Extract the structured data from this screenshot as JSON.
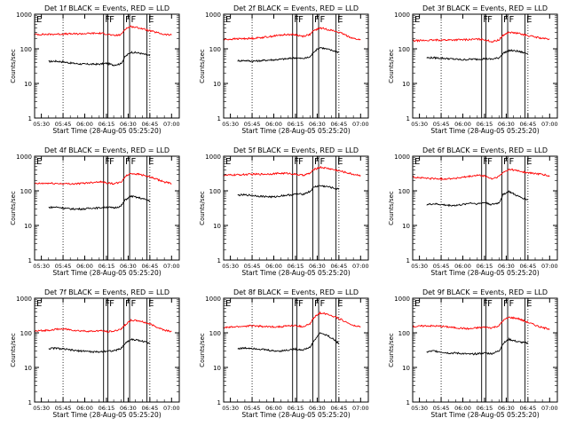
{
  "chart_data": {
    "type": "line",
    "layout": "3x3 grid of panels",
    "common": {
      "ylabel": "Counts/sec",
      "xlabel": "Start Time (28-Aug-05 05:25:20)",
      "y_scale": "log",
      "ylim": [
        1,
        1000
      ],
      "y_ticks": [
        1,
        10,
        100,
        1000
      ],
      "xlim_minutes_after_0525": [
        0,
        100
      ],
      "x_tick_labels": [
        "05:30",
        "05:45",
        "06:00",
        "06:15",
        "06:30",
        "06:45",
        "07:00"
      ],
      "grid": "vertical dotted lines at 05:45 and 06:45",
      "series_colors": {
        "events": "#000000",
        "lld": "#ff0000"
      },
      "markers": [
        {
          "label": "E",
          "time": "05:25:20"
        },
        {
          "label": "F",
          "time": "06:13"
        },
        {
          "label": "F",
          "time": "06:16"
        },
        {
          "label": "F",
          "time": "06:27"
        },
        {
          "label": "F",
          "time": "06:31"
        },
        {
          "label": "E",
          "time": "06:43"
        }
      ]
    },
    "panels": [
      {
        "title": "Det 1f BLACK = Events, RED = LLD",
        "series": [
          {
            "x": [
              "05:35",
              "05:40",
              "05:45",
              "05:50",
              "05:55",
              "06:00",
              "06:05",
              "06:10",
              "06:15",
              "06:20",
              "06:25",
              "06:28",
              "06:32",
              "06:38",
              "06:45"
            ],
            "values": [
              43,
              44,
              42,
              39,
              37,
              36,
              36,
              36,
              38,
              34,
              37,
              60,
              80,
              75,
              63
            ]
          },
          {
            "x": [
              "05:25",
              "05:35",
              "05:45",
              "05:55",
              "06:05",
              "06:10",
              "06:15",
              "06:20",
              "06:25",
              "06:28",
              "06:32",
              "06:38",
              "06:45",
              "06:55",
              "07:00"
            ],
            "values": [
              260,
              262,
              268,
              270,
              280,
              282,
              270,
              240,
              255,
              380,
              440,
              400,
              330,
              260,
              250
            ]
          }
        ]
      },
      {
        "title": "Det 2f BLACK = Events, RED = LLD",
        "series": [
          {
            "x": [
              "05:35",
              "05:40",
              "05:45",
              "05:50",
              "05:55",
              "06:00",
              "06:05",
              "06:10",
              "06:15",
              "06:20",
              "06:25",
              "06:28",
              "06:32",
              "06:38",
              "06:45"
            ],
            "values": [
              45,
              46,
              44,
              45,
              47,
              48,
              50,
              52,
              55,
              52,
              58,
              85,
              110,
              95,
              80
            ]
          },
          {
            "x": [
              "05:25",
              "05:35",
              "05:45",
              "05:55",
              "06:05",
              "06:10",
              "06:15",
              "06:20",
              "06:25",
              "06:28",
              "06:32",
              "06:38",
              "06:45",
              "06:55",
              "07:00"
            ],
            "values": [
              185,
              195,
              200,
              220,
              250,
              260,
              255,
              230,
              260,
              340,
              400,
              360,
              300,
              200,
              180
            ]
          }
        ]
      },
      {
        "title": "Det 3f BLACK = Events, RED = LLD",
        "series": [
          {
            "x": [
              "05:35",
              "05:40",
              "05:45",
              "05:50",
              "05:55",
              "06:00",
              "06:05",
              "06:10",
              "06:15",
              "06:20",
              "06:25",
              "06:28",
              "06:32",
              "06:38",
              "06:45"
            ],
            "values": [
              55,
              55,
              54,
              52,
              50,
              48,
              50,
              50,
              52,
              50,
              55,
              75,
              90,
              85,
              72
            ]
          },
          {
            "x": [
              "05:25",
              "05:35",
              "05:45",
              "05:55",
              "06:05",
              "06:10",
              "06:15",
              "06:20",
              "06:25",
              "06:28",
              "06:32",
              "06:38",
              "06:45",
              "06:55",
              "07:00"
            ],
            "values": [
              170,
              175,
              180,
              182,
              185,
              190,
              185,
              160,
              180,
              250,
              300,
              280,
              240,
              200,
              190
            ]
          }
        ]
      },
      {
        "title": "Det 4f BLACK = Events, RED = LLD",
        "series": [
          {
            "x": [
              "05:35",
              "05:40",
              "05:45",
              "05:50",
              "05:55",
              "06:00",
              "06:05",
              "06:10",
              "06:15",
              "06:20",
              "06:25",
              "06:28",
              "06:32",
              "06:38",
              "06:45"
            ],
            "values": [
              33,
              34,
              32,
              30,
              30,
              30,
              32,
              32,
              34,
              32,
              36,
              55,
              70,
              62,
              52
            ]
          },
          {
            "x": [
              "05:25",
              "05:35",
              "05:45",
              "05:55",
              "06:05",
              "06:10",
              "06:15",
              "06:20",
              "06:25",
              "06:28",
              "06:32",
              "06:38",
              "06:45",
              "06:55",
              "07:00"
            ],
            "values": [
              160,
              165,
              160,
              160,
              175,
              185,
              170,
              160,
              175,
              260,
              320,
              300,
              250,
              180,
              160
            ]
          }
        ]
      },
      {
        "title": "Det 5f BLACK = Events, RED = LLD",
        "series": [
          {
            "x": [
              "05:35",
              "05:40",
              "05:45",
              "05:50",
              "05:55",
              "06:00",
              "06:05",
              "06:10",
              "06:15",
              "06:20",
              "06:25",
              "06:28",
              "06:32",
              "06:38",
              "06:45"
            ],
            "values": [
              75,
              76,
              74,
              70,
              68,
              66,
              72,
              75,
              80,
              80,
              95,
              130,
              140,
              130,
              110
            ]
          },
          {
            "x": [
              "05:25",
              "05:35",
              "05:45",
              "05:55",
              "06:05",
              "06:10",
              "06:15",
              "06:20",
              "06:25",
              "06:28",
              "06:32",
              "06:38",
              "06:45",
              "06:55",
              "07:00"
            ],
            "values": [
              280,
              290,
              300,
              305,
              320,
              320,
              300,
              280,
              320,
              420,
              480,
              440,
              380,
              300,
              280
            ]
          }
        ]
      },
      {
        "title": "Det 6f BLACK = Events, RED = LLD",
        "series": [
          {
            "x": [
              "05:35",
              "05:40",
              "05:45",
              "05:50",
              "05:55",
              "06:00",
              "06:05",
              "06:10",
              "06:15",
              "06:20",
              "06:25",
              "06:28",
              "06:32",
              "06:38",
              "06:45"
            ],
            "values": [
              40,
              42,
              40,
              38,
              38,
              40,
              45,
              42,
              46,
              40,
              45,
              80,
              95,
              70,
              55
            ]
          },
          {
            "x": [
              "05:25",
              "05:35",
              "05:45",
              "05:55",
              "06:05",
              "06:10",
              "06:15",
              "06:20",
              "06:25",
              "06:28",
              "06:32",
              "06:38",
              "06:45",
              "06:55",
              "07:00"
            ],
            "values": [
              250,
              230,
              220,
              230,
              260,
              280,
              270,
              220,
              260,
              340,
              420,
              380,
              330,
              300,
              260
            ]
          }
        ]
      },
      {
        "title": "Det 7f BLACK = Events, RED = LLD",
        "series": [
          {
            "x": [
              "05:35",
              "05:40",
              "05:45",
              "05:50",
              "05:55",
              "06:00",
              "06:05",
              "06:10",
              "06:15",
              "06:20",
              "06:25",
              "06:28",
              "06:32",
              "06:38",
              "06:45"
            ],
            "values": [
              35,
              36,
              34,
              32,
              30,
              30,
              28,
              28,
              30,
              30,
              35,
              50,
              65,
              60,
              50
            ]
          },
          {
            "x": [
              "05:25",
              "05:35",
              "05:45",
              "05:55",
              "06:05",
              "06:10",
              "06:15",
              "06:20",
              "06:25",
              "06:28",
              "06:32",
              "06:38",
              "06:45",
              "06:55",
              "07:00"
            ],
            "values": [
              110,
              120,
              130,
              115,
              110,
              115,
              110,
              110,
              130,
              170,
              230,
              220,
              180,
              120,
              110
            ]
          }
        ]
      },
      {
        "title": "Det 8f BLACK = Events, RED = LLD",
        "series": [
          {
            "x": [
              "05:35",
              "05:40",
              "05:45",
              "05:50",
              "05:55",
              "06:00",
              "06:05",
              "06:10",
              "06:15",
              "06:20",
              "06:25",
              "06:28",
              "06:32",
              "06:38",
              "06:45"
            ],
            "values": [
              35,
              36,
              36,
              34,
              32,
              30,
              30,
              32,
              34,
              32,
              38,
              60,
              100,
              80,
              50
            ]
          },
          {
            "x": [
              "05:25",
              "05:35",
              "05:45",
              "05:55",
              "06:05",
              "06:10",
              "06:15",
              "06:20",
              "06:25",
              "06:28",
              "06:32",
              "06:38",
              "06:45",
              "06:55",
              "07:00"
            ],
            "values": [
              140,
              150,
              160,
              150,
              150,
              160,
              160,
              150,
              180,
              280,
              380,
              340,
              260,
              160,
              150
            ]
          }
        ]
      },
      {
        "title": "Det 9f BLACK = Events, RED = LLD",
        "series": [
          {
            "x": [
              "05:35",
              "05:40",
              "05:45",
              "05:50",
              "05:55",
              "06:00",
              "06:05",
              "06:10",
              "06:15",
              "06:20",
              "06:25",
              "06:28",
              "06:32",
              "06:38",
              "06:45"
            ],
            "values": [
              28,
              30,
              28,
              26,
              26,
              25,
              24,
              25,
              26,
              25,
              30,
              50,
              65,
              55,
              50
            ]
          },
          {
            "x": [
              "05:25",
              "05:35",
              "05:45",
              "05:55",
              "06:05",
              "06:10",
              "06:15",
              "06:20",
              "06:25",
              "06:28",
              "06:32",
              "06:38",
              "06:45",
              "06:55",
              "07:00"
            ],
            "values": [
              150,
              160,
              155,
              140,
              130,
              140,
              145,
              140,
              160,
              230,
              280,
              260,
              200,
              140,
              130
            ]
          }
        ]
      }
    ]
  }
}
